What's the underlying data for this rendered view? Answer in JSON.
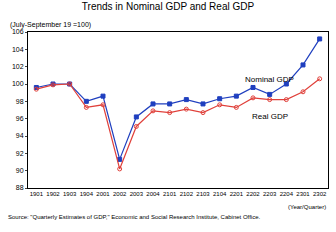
{
  "chart_data": {
    "type": "line",
    "title": "Trends in Nominal GDP and Real GDP",
    "subtitle": "(July-September 19 =100)",
    "x_label": "(Year/Quarter)",
    "source": "Source: \"Quarterly Estimates of GDP,\" Economic and Social Research Institute, Cabinet Office.",
    "categories": [
      "1901",
      "1902",
      "1903",
      "1904",
      "2001",
      "2002",
      "2003",
      "2004",
      "2101",
      "2102",
      "2103",
      "2104",
      "2201",
      "2202",
      "2203",
      "2204",
      "2301",
      "2302"
    ],
    "series": [
      {
        "name": "Nominal GDP",
        "color": "#1f3fbf",
        "marker": "square",
        "values": [
          99.6,
          100.0,
          100.0,
          98.0,
          98.6,
          91.3,
          96.2,
          97.7,
          97.7,
          98.2,
          97.7,
          98.3,
          98.6,
          99.6,
          98.8,
          100.0,
          102.2,
          105.2
        ]
      },
      {
        "name": "Real GDP",
        "color": "#e0403a",
        "marker": "circle-open",
        "values": [
          99.4,
          99.9,
          100.0,
          97.3,
          97.6,
          90.2,
          95.1,
          96.9,
          96.7,
          97.1,
          96.7,
          97.6,
          97.3,
          98.4,
          98.2,
          98.2,
          99.1,
          100.6
        ]
      }
    ],
    "ylim": [
      88,
      106
    ],
    "yticks": [
      88,
      90,
      92,
      94,
      96,
      98,
      100,
      102,
      104,
      106
    ],
    "grid": false
  }
}
